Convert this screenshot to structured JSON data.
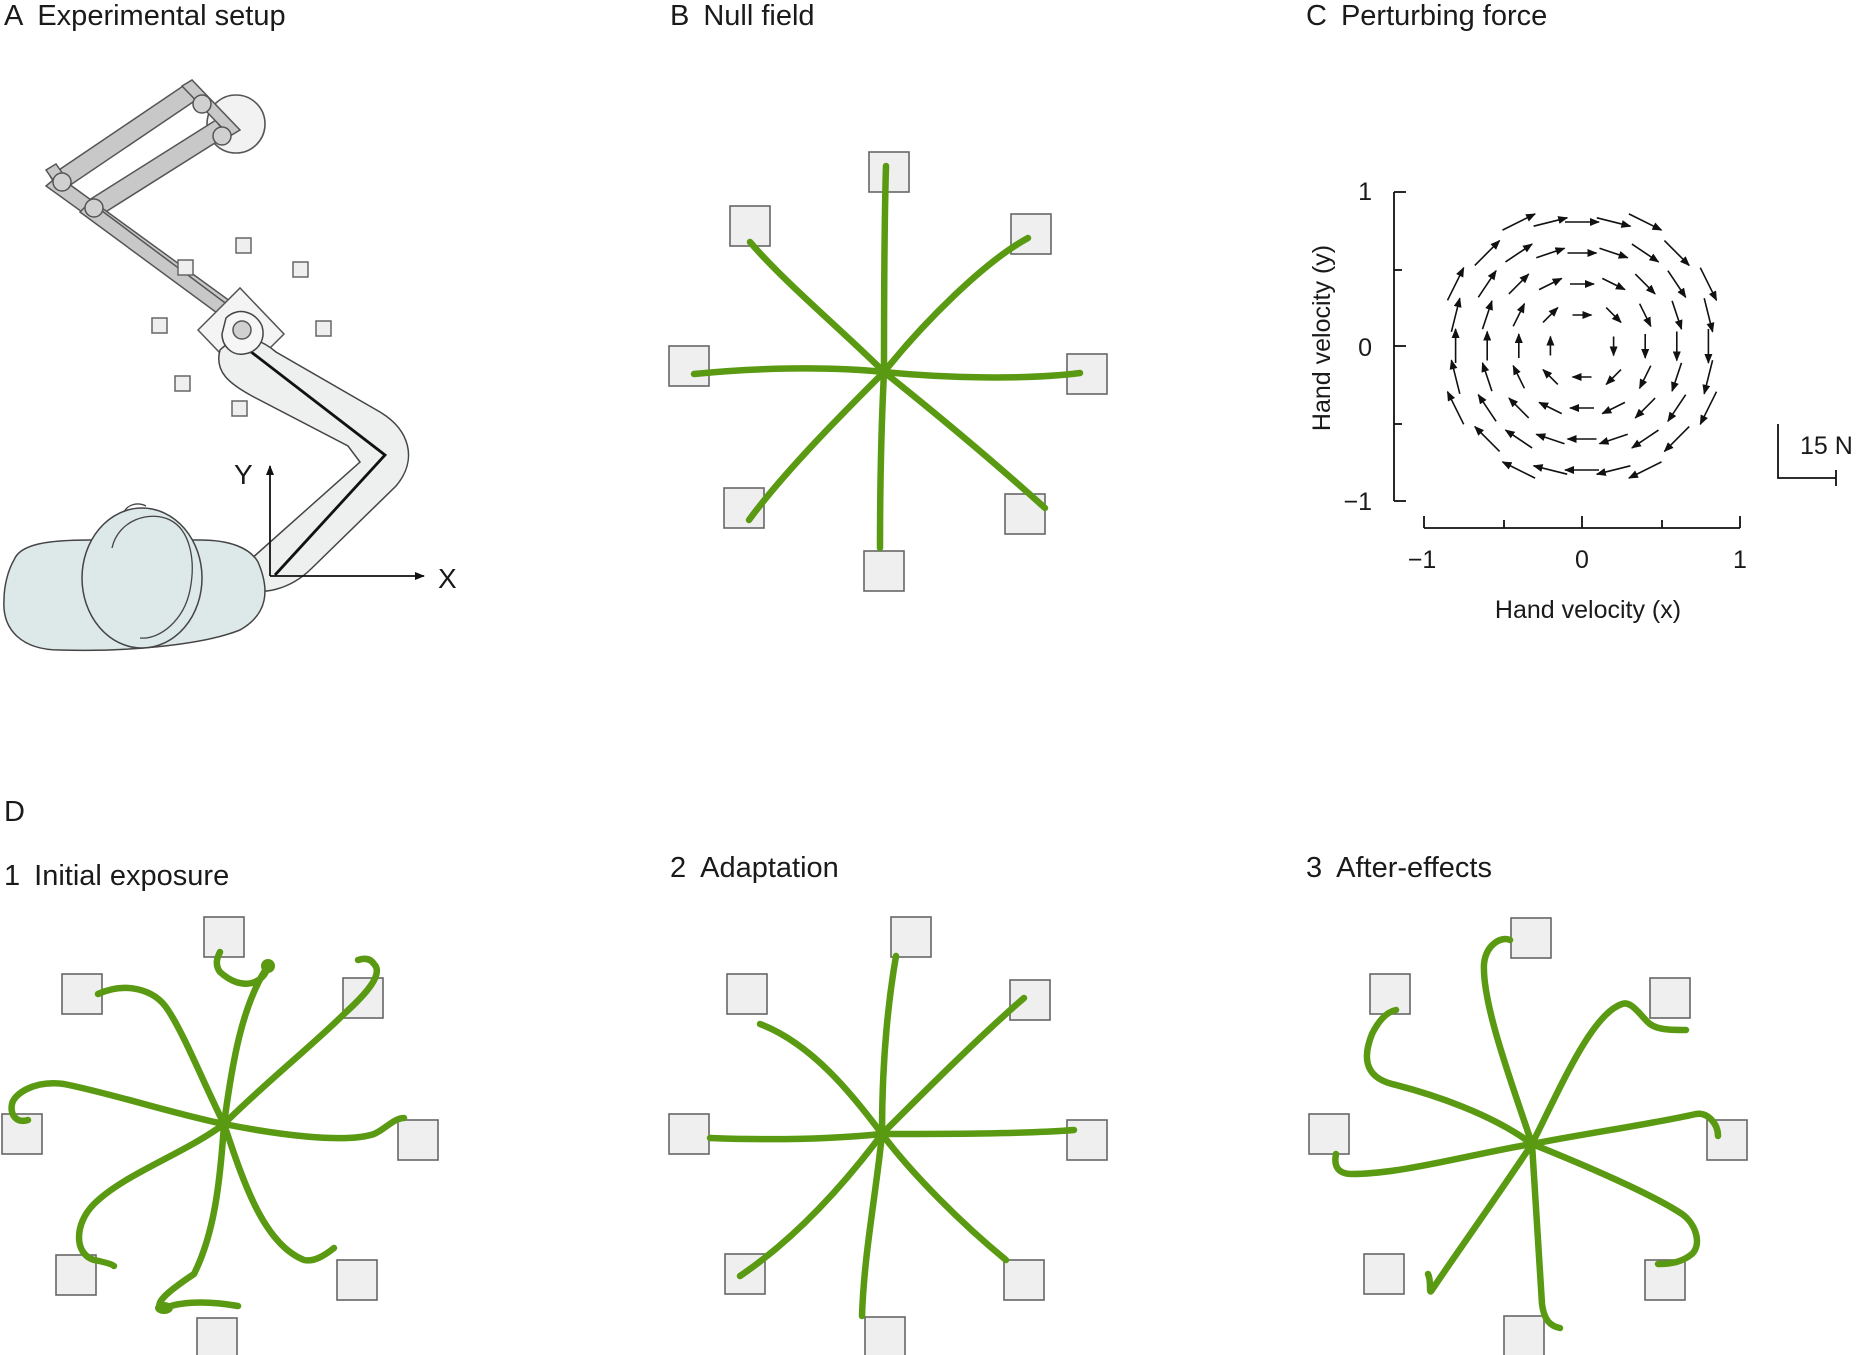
{
  "panels": {
    "a": {
      "letter": "A",
      "title": "Experimental setup",
      "axis_x": "X",
      "axis_y": "Y"
    },
    "b": {
      "letter": "B",
      "title": "Null field"
    },
    "c": {
      "letter": "C",
      "title": "Perturbing force",
      "xlabel": "Hand velocity (x)",
      "ylabel": "Hand velocity (y)",
      "xticks": [
        "−1",
        "0",
        "1"
      ],
      "yticks": [
        "1",
        "0",
        "−1"
      ],
      "scale_label": "15 N"
    },
    "d": {
      "letter": "D",
      "sub": [
        {
          "num": "1",
          "title": "Initial exposure"
        },
        {
          "num": "2",
          "title": "Adaptation"
        },
        {
          "num": "3",
          "title": "After-effects"
        }
      ]
    }
  },
  "colors": {
    "trajectory": "#5a9a12",
    "target_fill": "#efefef",
    "body_fill": "#dde8e8"
  }
}
